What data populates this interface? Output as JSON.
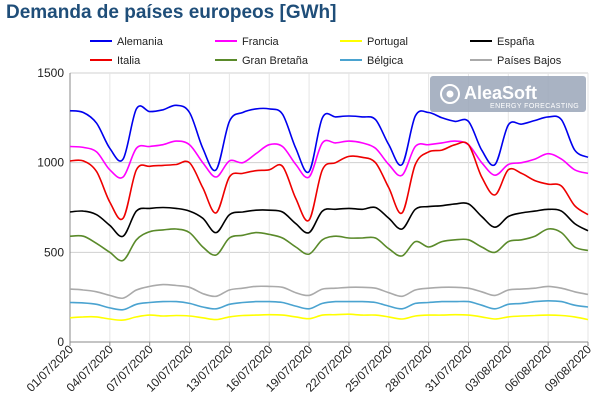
{
  "chart_data": {
    "type": "line",
    "title": "Demanda de países europeos [GWh]",
    "xlabel": "",
    "ylabel": "",
    "ylim": [
      0,
      1500
    ],
    "yticks": [
      0,
      500,
      1000,
      1500
    ],
    "grid": true,
    "legend_position": "top",
    "categories": [
      "01/07/2020",
      "02/07/2020",
      "03/07/2020",
      "04/07/2020",
      "05/07/2020",
      "06/07/2020",
      "07/07/2020",
      "08/07/2020",
      "09/07/2020",
      "10/07/2020",
      "11/07/2020",
      "12/07/2020",
      "13/07/2020",
      "14/07/2020",
      "15/07/2020",
      "16/07/2020",
      "17/07/2020",
      "18/07/2020",
      "19/07/2020",
      "20/07/2020",
      "21/07/2020",
      "22/07/2020",
      "23/07/2020",
      "24/07/2020",
      "25/07/2020",
      "26/07/2020",
      "27/07/2020",
      "28/07/2020",
      "29/07/2020",
      "30/07/2020",
      "31/07/2020",
      "01/08/2020",
      "02/08/2020",
      "03/08/2020",
      "04/08/2020",
      "05/08/2020",
      "06/08/2020",
      "07/08/2020",
      "08/08/2020",
      "09/08/2020"
    ],
    "x_tick_labels": [
      "01/07/2020",
      "04/07/2020",
      "07/07/2020",
      "10/07/2020",
      "13/07/2020",
      "16/07/2020",
      "19/07/2020",
      "22/07/2020",
      "25/07/2020",
      "28/07/2020",
      "31/07/2020",
      "03/08/2020",
      "06/08/2020",
      "09/08/2020"
    ],
    "series": [
      {
        "name": "Alemania",
        "color": "#0000ee",
        "values": [
          1290,
          1280,
          1220,
          1080,
          1020,
          1300,
          1285,
          1295,
          1320,
          1280,
          1080,
          960,
          1230,
          1280,
          1300,
          1300,
          1270,
          1080,
          950,
          1250,
          1255,
          1260,
          1255,
          1240,
          1100,
          990,
          1260,
          1280,
          1250,
          1230,
          1230,
          1070,
          990,
          1210,
          1215,
          1235,
          1255,
          1240,
          1070,
          1030
        ]
      },
      {
        "name": "Francia",
        "color": "#ff00ff",
        "values": [
          1090,
          1085,
          1060,
          960,
          920,
          1080,
          1090,
          1100,
          1120,
          1100,
          1000,
          920,
          1010,
          1000,
          1050,
          1100,
          1090,
          990,
          920,
          1110,
          1110,
          1120,
          1110,
          1080,
          990,
          930,
          1090,
          1100,
          1110,
          1120,
          1100,
          1000,
          930,
          990,
          1000,
          1020,
          1050,
          1020,
          960,
          940
        ]
      },
      {
        "name": "Portugal",
        "color": "#ffff00",
        "values": [
          135,
          140,
          140,
          128,
          122,
          140,
          150,
          145,
          148,
          145,
          135,
          125,
          140,
          148,
          150,
          152,
          150,
          140,
          130,
          150,
          152,
          155,
          150,
          150,
          140,
          128,
          145,
          150,
          150,
          152,
          150,
          140,
          128,
          140,
          145,
          148,
          150,
          148,
          140,
          125
        ]
      },
      {
        "name": "España",
        "color": "#000000",
        "values": [
          725,
          730,
          710,
          650,
          590,
          730,
          745,
          750,
          745,
          730,
          690,
          610,
          710,
          725,
          735,
          735,
          725,
          660,
          610,
          730,
          740,
          745,
          740,
          750,
          690,
          630,
          740,
          755,
          760,
          770,
          770,
          700,
          640,
          700,
          720,
          730,
          740,
          730,
          660,
          620
        ]
      },
      {
        "name": "Italia",
        "color": "#ee0000",
        "values": [
          1010,
          1010,
          950,
          780,
          690,
          960,
          980,
          985,
          990,
          1000,
          860,
          720,
          920,
          940,
          955,
          960,
          980,
          800,
          680,
          960,
          1000,
          1035,
          1030,
          1000,
          860,
          720,
          990,
          1060,
          1070,
          1100,
          1100,
          920,
          820,
          960,
          940,
          900,
          880,
          870,
          760,
          710
        ]
      },
      {
        "name": "Gran Bretaña",
        "color": "#5a8a2a",
        "values": [
          590,
          590,
          550,
          500,
          455,
          570,
          615,
          625,
          630,
          610,
          530,
          485,
          580,
          595,
          610,
          600,
          580,
          530,
          490,
          570,
          590,
          580,
          580,
          580,
          520,
          480,
          560,
          530,
          560,
          570,
          570,
          530,
          500,
          560,
          570,
          590,
          630,
          610,
          530,
          510
        ]
      },
      {
        "name": "Bélgica",
        "color": "#4aa3d0",
        "values": [
          220,
          218,
          210,
          190,
          180,
          210,
          220,
          225,
          225,
          215,
          195,
          185,
          210,
          220,
          225,
          225,
          220,
          200,
          185,
          215,
          225,
          225,
          225,
          220,
          200,
          185,
          215,
          220,
          225,
          225,
          225,
          205,
          185,
          210,
          215,
          225,
          230,
          225,
          205,
          195
        ]
      },
      {
        "name": "Países Bajos",
        "color": "#aaaaaa",
        "values": [
          295,
          290,
          280,
          260,
          245,
          290,
          310,
          320,
          315,
          305,
          270,
          255,
          290,
          300,
          310,
          310,
          305,
          275,
          260,
          295,
          300,
          305,
          305,
          300,
          275,
          255,
          290,
          300,
          305,
          305,
          300,
          280,
          260,
          290,
          295,
          300,
          310,
          300,
          280,
          265
        ]
      }
    ]
  },
  "logo": {
    "name": "AleaSoft",
    "tagline": "ENERGY FORECASTING"
  }
}
